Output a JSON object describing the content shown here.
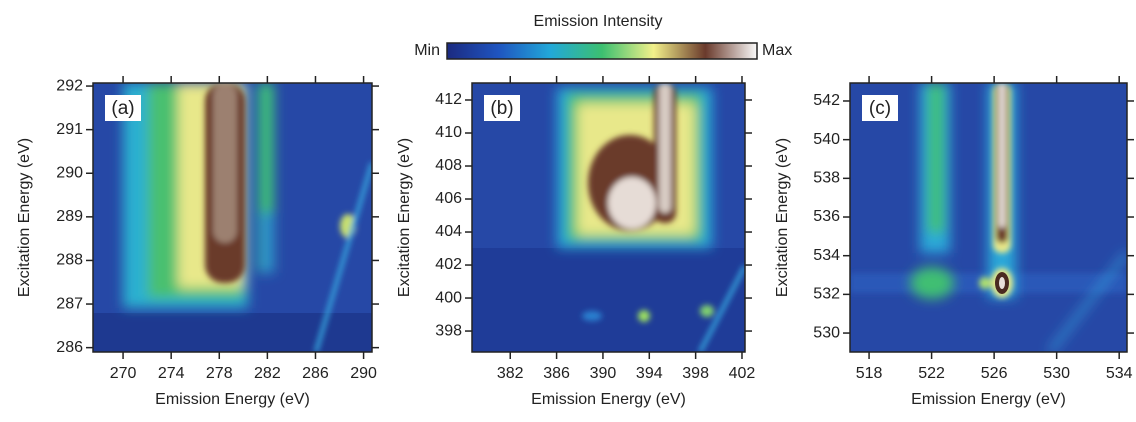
{
  "colorbar": {
    "title": "Emission Intensity",
    "min_label": "Min",
    "max_label": "Max",
    "colors": [
      "#1b2a80",
      "#1f55c0",
      "#22a8d8",
      "#3cc070",
      "#f2f08a",
      "#6a3a2c",
      "#fafafa"
    ]
  },
  "chart_data": [
    {
      "type": "heatmap",
      "label": "(a)",
      "xlabel": "Emission Energy (eV)",
      "ylabel": "Excitation Energy (eV)",
      "xlim": [
        267.5,
        290.7
      ],
      "ylim": [
        285.9,
        292.07
      ],
      "xticks": [
        270,
        274,
        278,
        282,
        286,
        290
      ],
      "yticks": [
        286,
        287,
        288,
        289,
        290,
        291,
        292
      ]
    },
    {
      "type": "heatmap",
      "label": "(b)",
      "xlabel": "Emission Energy (eV)",
      "ylabel": "Excitation Energy (eV)",
      "xlim": [
        378.7,
        402.26
      ],
      "ylim": [
        396.73,
        413.03
      ],
      "xticks": [
        382,
        386,
        390,
        394,
        398,
        402
      ],
      "yticks": [
        398,
        400,
        402,
        404,
        406,
        408,
        410,
        412
      ]
    },
    {
      "type": "heatmap",
      "label": "(c)",
      "xlabel": "Emission Energy (eV)",
      "ylabel": "Excitation Energy (eV)",
      "xlim": [
        516.78,
        534.5
      ],
      "ylim": [
        529.02,
        542.93
      ],
      "xticks": [
        518,
        522,
        526,
        530,
        534
      ],
      "yticks": [
        530,
        532,
        534,
        536,
        538,
        540,
        542
      ]
    }
  ]
}
